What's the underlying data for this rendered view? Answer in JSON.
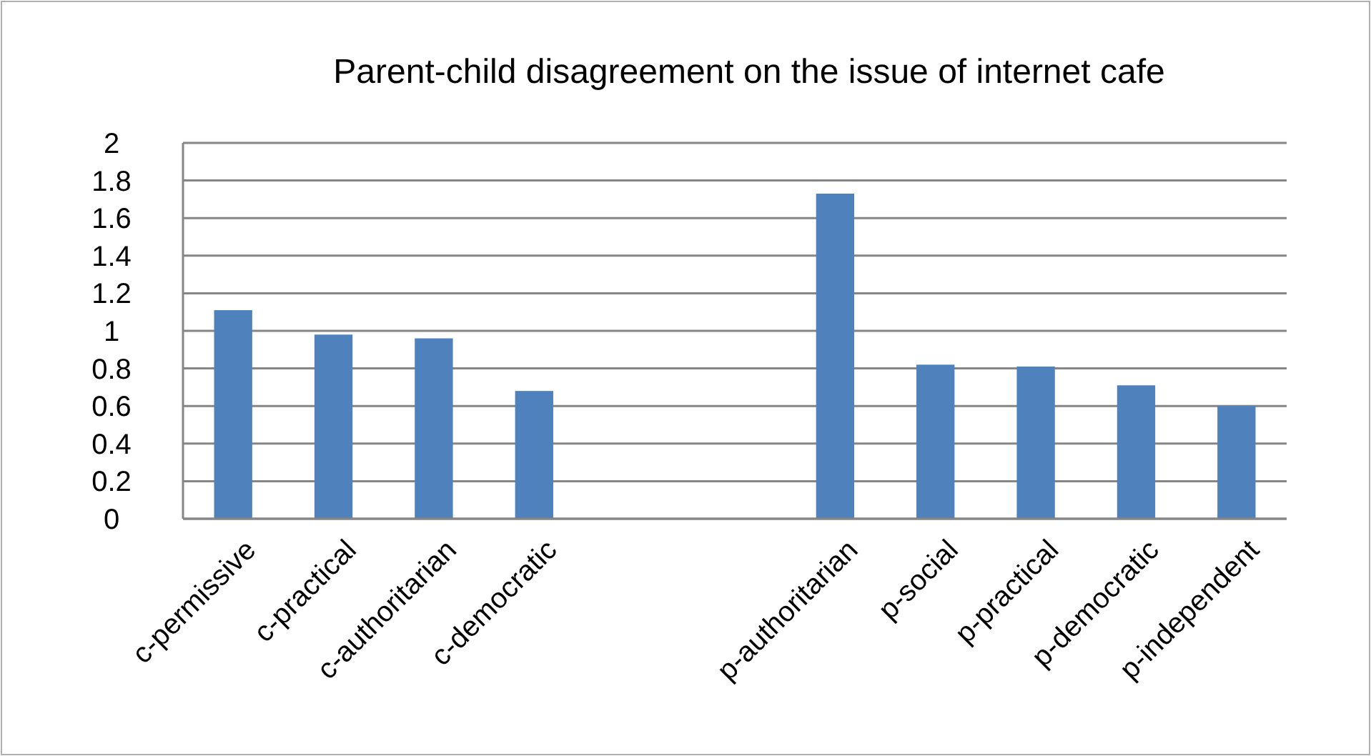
{
  "chart_data": {
    "type": "bar",
    "title": "Parent-child disagreement on the issue of internet cafe",
    "categories": [
      "c-permissive",
      "c-practical",
      "c-authoritarian",
      "c-democratic",
      null,
      null,
      "p-authoritarian",
      "p-social",
      "p-practical",
      "p-democratic",
      "p-independent"
    ],
    "values": [
      1.11,
      0.98,
      0.96,
      0.68,
      null,
      null,
      1.73,
      0.82,
      0.81,
      0.71,
      0.6
    ],
    "color": "#4f81bd",
    "ylim": [
      0,
      2
    ],
    "yticks": [
      0,
      0.2,
      0.4,
      0.6,
      0.8,
      1,
      1.2,
      1.4,
      1.6,
      1.8,
      2
    ],
    "grid": "y"
  }
}
